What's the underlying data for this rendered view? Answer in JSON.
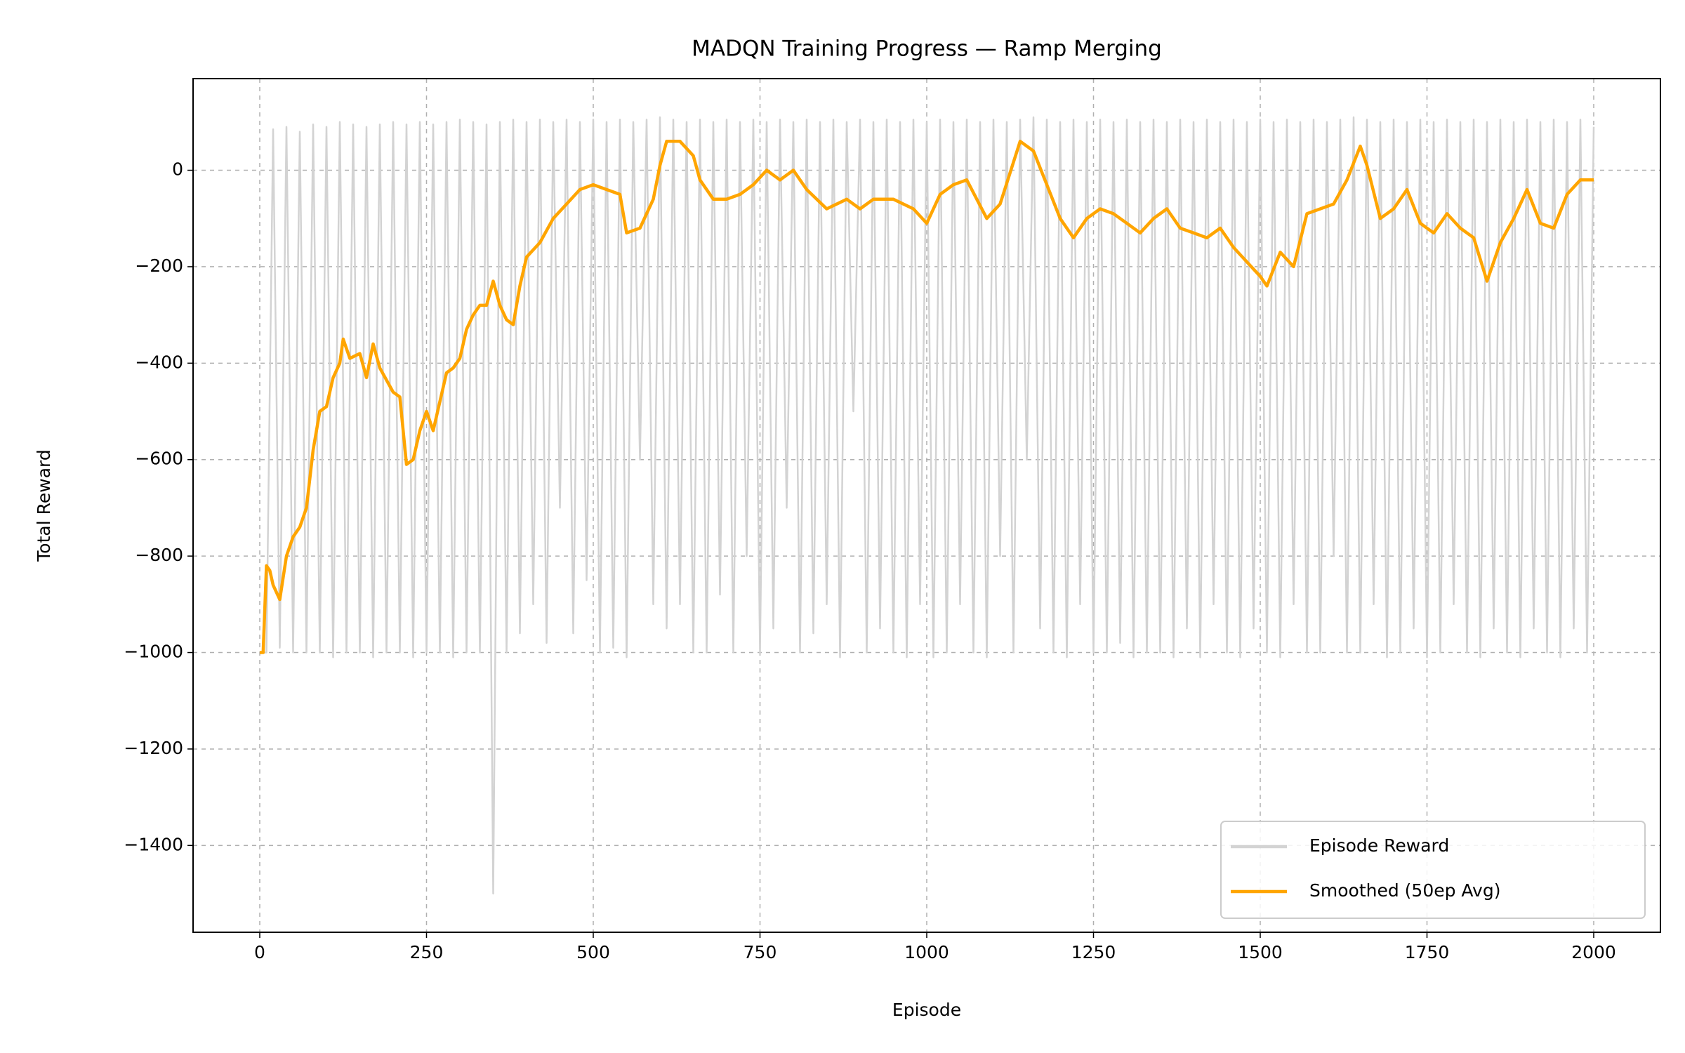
{
  "chart_data": {
    "type": "line",
    "title": "MADQN Training Progress — Ramp Merging",
    "x_label": "Episode",
    "y_label": "Total Reward",
    "xlim": [
      -100,
      2100
    ],
    "ylim": [
      -1580,
      190
    ],
    "xticks": [
      0,
      250,
      500,
      750,
      1000,
      1250,
      1500,
      1750,
      2000
    ],
    "yticks": [
      {
        "value": -1400,
        "label": "−1400"
      },
      {
        "value": -1200,
        "label": "−1200"
      },
      {
        "value": -1000,
        "label": "−1000"
      },
      {
        "value": -800,
        "label": "−800"
      },
      {
        "value": -600,
        "label": "−600"
      },
      {
        "value": -400,
        "label": "−400"
      },
      {
        "value": -200,
        "label": "−200"
      },
      0
    ],
    "grid": true,
    "legend": "lower right",
    "series": [
      {
        "name": "Episode Reward",
        "color": "#d3d3d3",
        "x": [
          0,
          10,
          20,
          30,
          40,
          50,
          60,
          70,
          80,
          90,
          100,
          110,
          120,
          130,
          140,
          150,
          160,
          170,
          180,
          190,
          200,
          210,
          220,
          230,
          240,
          250,
          260,
          270,
          280,
          290,
          300,
          310,
          320,
          330,
          340,
          350,
          360,
          370,
          380,
          390,
          400,
          410,
          420,
          430,
          440,
          450,
          460,
          470,
          480,
          490,
          500,
          510,
          520,
          530,
          540,
          550,
          560,
          570,
          580,
          590,
          600,
          610,
          620,
          630,
          640,
          650,
          660,
          670,
          680,
          690,
          700,
          710,
          720,
          730,
          740,
          750,
          760,
          770,
          780,
          790,
          800,
          810,
          820,
          830,
          840,
          850,
          860,
          870,
          880,
          890,
          900,
          910,
          920,
          930,
          940,
          950,
          960,
          970,
          980,
          990,
          1000,
          1010,
          1020,
          1030,
          1040,
          1050,
          1060,
          1070,
          1080,
          1090,
          1100,
          1110,
          1120,
          1130,
          1140,
          1150,
          1160,
          1170,
          1180,
          1190,
          1200,
          1210,
          1220,
          1230,
          1240,
          1250,
          1260,
          1270,
          1280,
          1290,
          1300,
          1310,
          1320,
          1330,
          1340,
          1350,
          1360,
          1370,
          1380,
          1390,
          1400,
          1410,
          1420,
          1430,
          1440,
          1450,
          1460,
          1470,
          1480,
          1490,
          1500,
          1510,
          1520,
          1530,
          1540,
          1550,
          1560,
          1570,
          1580,
          1590,
          1600,
          1610,
          1620,
          1630,
          1640,
          1650,
          1660,
          1670,
          1680,
          1690,
          1700,
          1710,
          1720,
          1730,
          1740,
          1750,
          1760,
          1770,
          1780,
          1790,
          1800,
          1810,
          1820,
          1830,
          1840,
          1850,
          1860,
          1870,
          1880,
          1890,
          1900,
          1910,
          1920,
          1930,
          1940,
          1950,
          1960,
          1970,
          1980,
          1990,
          2000
        ],
        "values": [
          -1000,
          -1000,
          85,
          -990,
          90,
          -1000,
          80,
          -1000,
          95,
          -1000,
          90,
          -1010,
          100,
          -1000,
          95,
          -1000,
          90,
          -1010,
          95,
          -1000,
          100,
          -1000,
          95,
          -1010,
          100,
          -1000,
          95,
          -1000,
          100,
          -1010,
          105,
          -1000,
          100,
          -1000,
          95,
          -1500,
          100,
          -1000,
          105,
          -960,
          100,
          -900,
          105,
          -980,
          100,
          -700,
          105,
          -960,
          100,
          -850,
          105,
          -1000,
          100,
          -990,
          105,
          -1010,
          100,
          -600,
          105,
          -900,
          110,
          -950,
          105,
          -900,
          100,
          -1000,
          105,
          -1000,
          100,
          -880,
          105,
          -1000,
          100,
          -800,
          105,
          -1000,
          100,
          -950,
          105,
          -700,
          100,
          -1000,
          105,
          -960,
          100,
          -900,
          105,
          -1010,
          100,
          -500,
          105,
          -1000,
          100,
          -950,
          105,
          -1000,
          100,
          -1010,
          105,
          -900,
          100,
          -1010,
          105,
          -1000,
          100,
          -900,
          105,
          -1000,
          100,
          -1010,
          105,
          -800,
          100,
          -1000,
          105,
          -600,
          110,
          -950,
          105,
          -1000,
          100,
          -1010,
          105,
          -900,
          100,
          -1000,
          105,
          -1000,
          100,
          -980,
          105,
          -1010,
          100,
          -1000,
          105,
          -1000,
          100,
          -1010,
          105,
          -950,
          100,
          -1010,
          105,
          -900,
          100,
          -1000,
          105,
          -1010,
          100,
          -950,
          105,
          -1000,
          100,
          -1010,
          105,
          -900,
          100,
          -1000,
          105,
          -1000,
          100,
          -800,
          105,
          -1000,
          110,
          -1000,
          105,
          -900,
          100,
          -1010,
          105,
          -1000,
          100,
          -950,
          105,
          -1010,
          100,
          -1000,
          105,
          -900,
          100,
          -1000,
          105,
          -1010,
          100,
          -950,
          105,
          -1000,
          100,
          -1010,
          105,
          -950,
          100,
          -1000,
          105,
          -1010,
          100,
          -950,
          105,
          -1000,
          90
        ]
      },
      {
        "name": "Smoothed (50ep Avg)",
        "color": "#ffa500",
        "x": [
          0,
          5,
          10,
          15,
          20,
          30,
          40,
          50,
          60,
          70,
          80,
          90,
          100,
          110,
          120,
          125,
          135,
          150,
          160,
          170,
          180,
          200,
          210,
          220,
          230,
          240,
          250,
          260,
          270,
          280,
          290,
          300,
          310,
          320,
          330,
          340,
          350,
          360,
          370,
          380,
          390,
          400,
          420,
          440,
          460,
          480,
          500,
          520,
          540,
          550,
          570,
          590,
          600,
          610,
          630,
          650,
          660,
          680,
          700,
          720,
          740,
          760,
          780,
          800,
          820,
          850,
          880,
          900,
          920,
          950,
          980,
          1000,
          1020,
          1040,
          1060,
          1090,
          1110,
          1140,
          1160,
          1180,
          1200,
          1220,
          1240,
          1260,
          1280,
          1300,
          1320,
          1340,
          1360,
          1380,
          1400,
          1420,
          1440,
          1460,
          1480,
          1500,
          1510,
          1530,
          1550,
          1570,
          1590,
          1610,
          1630,
          1650,
          1660,
          1680,
          1700,
          1720,
          1740,
          1760,
          1780,
          1800,
          1820,
          1840,
          1860,
          1880,
          1900,
          1920,
          1940,
          1960,
          1980,
          2000
        ],
        "values": [
          -1000,
          -1000,
          -820,
          -830,
          -860,
          -890,
          -800,
          -760,
          -740,
          -700,
          -580,
          -500,
          -490,
          -430,
          -400,
          -350,
          -390,
          -380,
          -430,
          -360,
          -410,
          -460,
          -470,
          -610,
          -600,
          -540,
          -500,
          -540,
          -480,
          -420,
          -410,
          -390,
          -330,
          -300,
          -280,
          -280,
          -230,
          -280,
          -310,
          -320,
          -240,
          -180,
          -150,
          -100,
          -70,
          -40,
          -30,
          -40,
          -50,
          -130,
          -120,
          -60,
          10,
          60,
          60,
          30,
          -20,
          -60,
          -60,
          -50,
          -30,
          0,
          -20,
          0,
          -40,
          -80,
          -60,
          -80,
          -60,
          -60,
          -80,
          -110,
          -50,
          -30,
          -20,
          -100,
          -70,
          60,
          40,
          -30,
          -100,
          -140,
          -100,
          -80,
          -90,
          -110,
          -130,
          -100,
          -80,
          -120,
          -130,
          -140,
          -120,
          -160,
          -190,
          -220,
          -240,
          -170,
          -200,
          -90,
          -80,
          -70,
          -20,
          50,
          10,
          -100,
          -80,
          -40,
          -110,
          -130,
          -90,
          -120,
          -140,
          -230,
          -150,
          -100,
          -40,
          -110,
          -120,
          -50,
          -20,
          -20
        ]
      }
    ]
  }
}
